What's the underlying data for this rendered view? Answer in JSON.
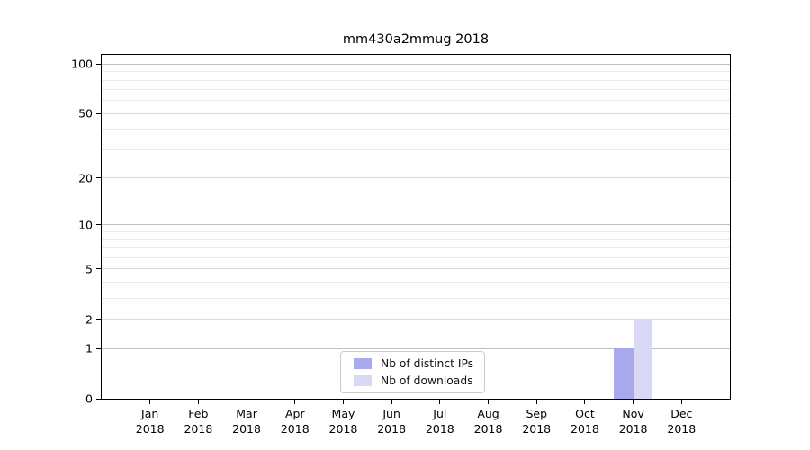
{
  "chart_data": {
    "type": "bar",
    "title": "mm430a2mmug 2018",
    "categories": [
      "Jan 2018",
      "Feb 2018",
      "Mar 2018",
      "Apr 2018",
      "May 2018",
      "Jun 2018",
      "Jul 2018",
      "Aug 2018",
      "Sep 2018",
      "Oct 2018",
      "Nov 2018",
      "Dec 2018"
    ],
    "x_tick_months": [
      "Jan",
      "Feb",
      "Mar",
      "Apr",
      "May",
      "Jun",
      "Jul",
      "Aug",
      "Sep",
      "Oct",
      "Nov",
      "Dec"
    ],
    "x_tick_year": "2018",
    "series": [
      {
        "name": "Nb of distinct IPs",
        "color": "#a9a9ee",
        "values": [
          0,
          0,
          0,
          0,
          0,
          0,
          0,
          0,
          0,
          0,
          1,
          0
        ]
      },
      {
        "name": "Nb of downloads",
        "color": "#d9d9f7",
        "values": [
          0,
          0,
          0,
          0,
          0,
          0,
          0,
          0,
          0,
          0,
          2,
          0
        ]
      }
    ],
    "yscale": "log1p",
    "ylim": [
      0,
      113.7
    ],
    "y_ticks_labeled": [
      0,
      1,
      2,
      5,
      10,
      20,
      50,
      100
    ],
    "y_ticks_unlabeled_minor": [
      3,
      4,
      6,
      7,
      8,
      9,
      30,
      40,
      60,
      70,
      80,
      90
    ],
    "grid": "horizontal",
    "legend_position": "lower center"
  },
  "colors": {
    "bar_distinct_ips": "#a9a9ee",
    "bar_downloads": "#d9d9f7",
    "legend_border": "#cccccc",
    "spine": "#000000",
    "background": "#ffffff"
  }
}
